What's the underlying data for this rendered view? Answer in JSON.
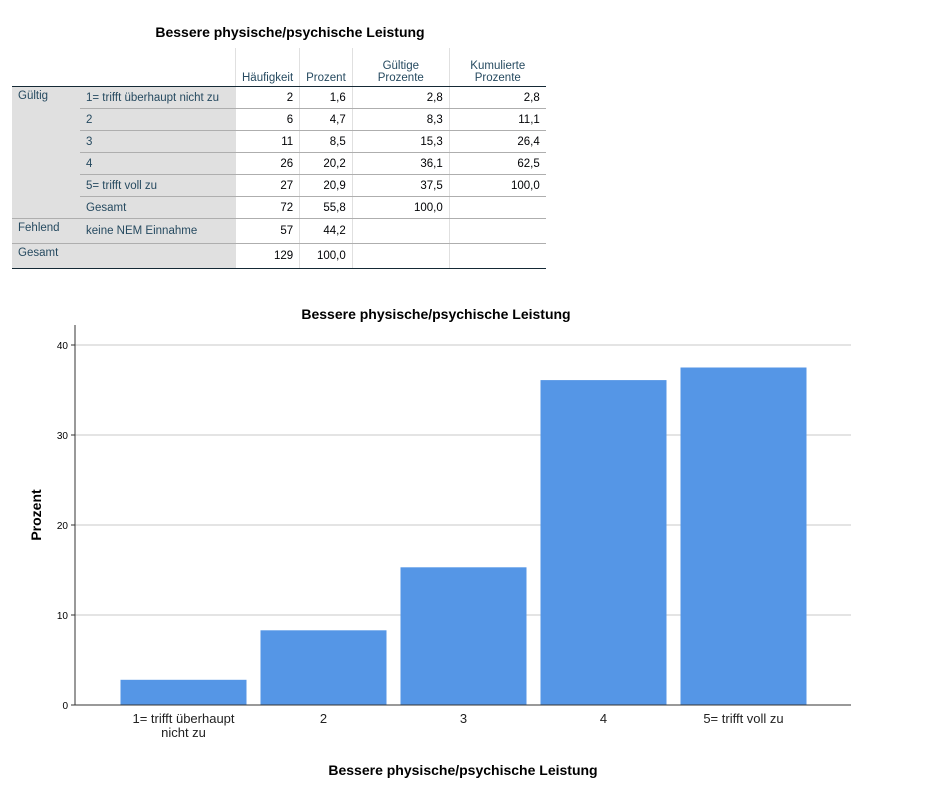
{
  "table": {
    "title": "Bessere physische/psychische Leistung",
    "headers": [
      "Häufigkeit",
      "Prozent",
      "Gültige Prozente",
      "Kumulierte Prozente"
    ],
    "header_lines": [
      [
        "Häufigkeit"
      ],
      [
        "Prozent"
      ],
      [
        "Gültige",
        "Prozente"
      ],
      [
        "Kumulierte",
        "Prozente"
      ]
    ],
    "groups": {
      "valid": "Gültig",
      "missing": "Fehlend",
      "total": "Gesamt"
    },
    "rows": [
      {
        "label": "1= trifft überhaupt nicht zu",
        "values": [
          "2",
          "1,6",
          "2,8",
          "2,8"
        ]
      },
      {
        "label": "2",
        "values": [
          "6",
          "4,7",
          "8,3",
          "11,1"
        ]
      },
      {
        "label": "3",
        "values": [
          "11",
          "8,5",
          "15,3",
          "26,4"
        ]
      },
      {
        "label": "4",
        "values": [
          "26",
          "20,2",
          "36,1",
          "62,5"
        ]
      },
      {
        "label": "5= trifft voll zu",
        "values": [
          "27",
          "20,9",
          "37,5",
          "100,0"
        ]
      },
      {
        "label": "Gesamt",
        "values": [
          "72",
          "55,8",
          "100,0",
          ""
        ]
      },
      {
        "label": "keine NEM Einnahme",
        "values": [
          "57",
          "44,2",
          "",
          ""
        ]
      },
      {
        "label": "",
        "values": [
          "129",
          "100,0",
          "",
          ""
        ]
      }
    ]
  },
  "chart_data": {
    "type": "bar",
    "title": "Bessere physische/psychische Leistung",
    "xlabel": "Bessere physische/psychische Leistung",
    "ylabel": "Prozent",
    "categories": [
      "1= trifft überhaupt nicht zu",
      "2",
      "3",
      "4",
      "5= trifft voll zu"
    ],
    "category_lines": [
      [
        "1= trifft überhaupt",
        "nicht zu"
      ],
      [
        "2"
      ],
      [
        "3"
      ],
      [
        "4"
      ],
      [
        "5= trifft voll zu"
      ]
    ],
    "values": [
      2.8,
      8.3,
      15.3,
      36.1,
      37.5
    ],
    "ylim": [
      0,
      40
    ],
    "yticks": [
      0,
      10,
      20,
      30,
      40
    ],
    "grid": true,
    "bar_color": "#5596e6"
  }
}
